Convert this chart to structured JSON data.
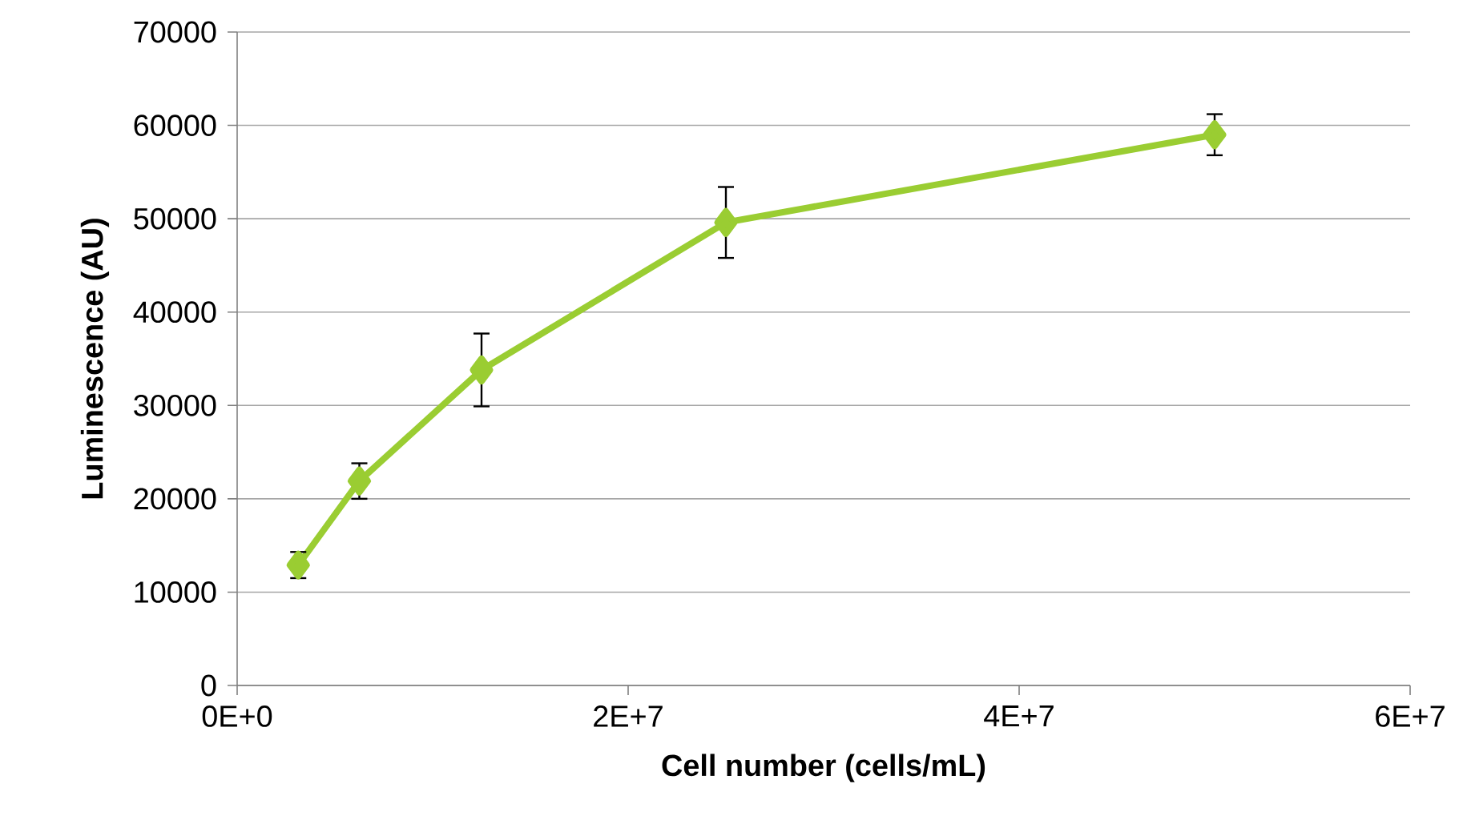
{
  "chart_data": {
    "type": "line",
    "xlabel": "Cell number (cells/mL)",
    "ylabel": "Luminescence (AU)",
    "x": [
      3125000,
      6250000,
      12500000,
      25000000,
      50000000
    ],
    "values": [
      12900,
      21900,
      33800,
      49600,
      59000
    ],
    "errors": [
      1400,
      1900,
      3900,
      3800,
      2200
    ],
    "color": "#9acd32",
    "marker": "diamond",
    "line_style": "solid",
    "xlim": [
      0,
      60000000
    ],
    "xticks": [
      {
        "value": 0,
        "label": "0E+0"
      },
      {
        "value": 20000000,
        "label": "2E+7"
      },
      {
        "value": 40000000,
        "label": "4E+7"
      },
      {
        "value": 60000000,
        "label": "6E+7"
      }
    ],
    "ylim": [
      0,
      70000
    ],
    "yticks": [
      0,
      10000,
      20000,
      30000,
      40000,
      50000,
      60000,
      70000
    ],
    "grid": "y"
  }
}
